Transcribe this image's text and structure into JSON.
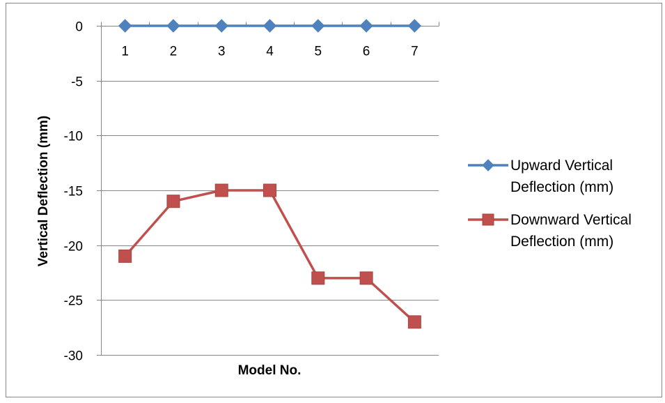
{
  "chart_data": {
    "type": "line",
    "title": "",
    "xlabel": "Model No.",
    "ylabel": "Vertical Deflection (mm)",
    "categories": [
      "1",
      "2",
      "3",
      "4",
      "5",
      "6",
      "7"
    ],
    "ylim": [
      -30,
      0
    ],
    "yticks": [
      0,
      -5,
      -10,
      -15,
      -20,
      -25,
      -30
    ],
    "grid": true,
    "legend_position": "right",
    "series": [
      {
        "name_lines": [
          "Upward Vertical",
          "Deflection (mm)"
        ],
        "marker": "diamond",
        "color": "#4F81BD",
        "values": [
          0,
          0,
          0,
          0,
          0,
          0,
          0
        ]
      },
      {
        "name_lines": [
          "Downward Vertical",
          "Deflection (mm)"
        ],
        "marker": "square",
        "color": "#C0504D",
        "values": [
          -21,
          -16,
          -15,
          -15,
          -23,
          -23,
          -27
        ]
      }
    ]
  }
}
